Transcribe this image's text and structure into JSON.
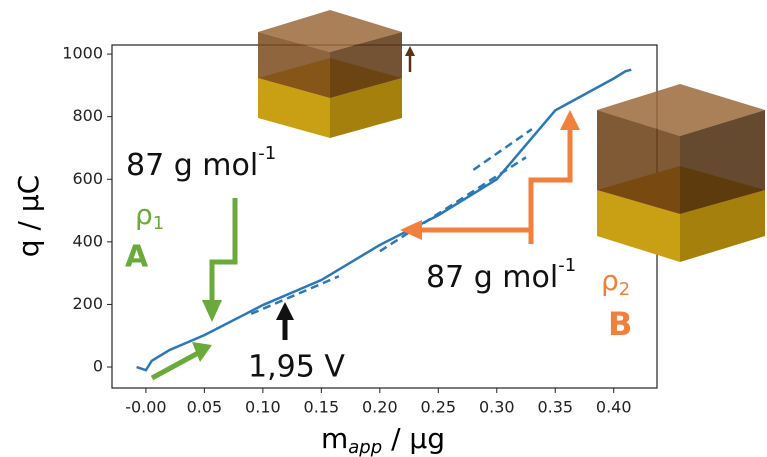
{
  "chart_data": {
    "type": "line",
    "x_label": {
      "main": "m",
      "sub": "app",
      "rest": " / μg"
    },
    "y_label": "q / μC",
    "xlim": [
      -0.029,
      0.437
    ],
    "ylim": [
      -67,
      1029
    ],
    "xticks": [
      {
        "value": 0,
        "label": "-0.00"
      },
      0.05,
      {
        "value": 0.1,
        "label": "0.10"
      },
      0.15,
      {
        "value": 0.2,
        "label": "0.20"
      },
      0.25,
      {
        "value": 0.3,
        "label": "0.30"
      },
      0.35,
      {
        "value": 0.4,
        "label": "0.40"
      }
    ],
    "yticks": [
      0,
      200,
      400,
      600,
      800,
      1000
    ],
    "series": [
      {
        "color": "#2a78b8",
        "style": "solid",
        "x": [
          -0.008,
          0.0,
          0.005,
          0.02,
          0.05,
          0.1,
          0.15,
          0.2,
          0.25,
          0.3,
          0.35,
          0.4,
          0.41,
          0.415
        ],
        "values": [
          0,
          -10,
          20,
          54,
          102,
          198,
          278,
          390,
          485,
          600,
          820,
          922,
          945,
          950
        ]
      },
      {
        "color": "#2a78b8",
        "style": "dashed",
        "x": [
          0.09,
          0.165
        ],
        "values": [
          170,
          290
        ]
      },
      {
        "color": "#2a78b8",
        "style": "dashed",
        "x": [
          0.2,
          0.325
        ],
        "values": [
          370,
          670
        ]
      },
      {
        "color": "#2a78b8",
        "style": "dashed",
        "x": [
          0.28,
          0.33
        ],
        "values": [
          630,
          760
        ]
      }
    ],
    "annotations": {
      "left_mass": "87 g mol",
      "left_mass_exp": "-1",
      "rho_left": "ρ",
      "rho_left_sub": "1",
      "label_a": "A",
      "right_mass": "87 g mol",
      "right_mass_exp": "-1",
      "rho_right": "ρ",
      "rho_right_sub": "2",
      "label_b": "B",
      "voltage": "1,95 V"
    }
  }
}
